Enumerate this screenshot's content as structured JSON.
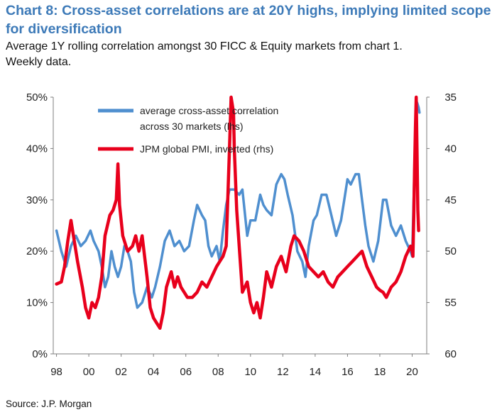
{
  "title_line1": "Chart 8: Cross-asset correlations are at 20Y highs, implying limited scope",
  "title_line2": "for diversification",
  "subtitle_line1": "Average 1Y rolling correlation amongst 30 FICC & Equity markets from chart 1.",
  "subtitle_line2": "Weekly data.",
  "source": "Source: J.P. Morgan",
  "chart_data": {
    "type": "line",
    "x_range": [
      1997.8,
      2020.9
    ],
    "x_ticks": [
      {
        "value": 1998,
        "label": "98"
      },
      {
        "value": 2000,
        "label": "00"
      },
      {
        "value": 2002,
        "label": "02"
      },
      {
        "value": 2004,
        "label": "04"
      },
      {
        "value": 2006,
        "label": "06"
      },
      {
        "value": 2008,
        "label": "08"
      },
      {
        "value": 2010,
        "label": "10"
      },
      {
        "value": 2012,
        "label": "12"
      },
      {
        "value": 2014,
        "label": "14"
      },
      {
        "value": 2016,
        "label": "16"
      },
      {
        "value": 2018,
        "label": "18"
      },
      {
        "value": 2020,
        "label": "20"
      }
    ],
    "y_left": {
      "min": 0,
      "max": 50,
      "ticks": [
        {
          "value": 50,
          "label": "50%"
        },
        {
          "value": 40,
          "label": "40%"
        },
        {
          "value": 30,
          "label": "30%"
        },
        {
          "value": 20,
          "label": "20%"
        },
        {
          "value": 10,
          "label": "10%"
        },
        {
          "value": 0,
          "label": "0%"
        }
      ]
    },
    "y_right": {
      "top": 35,
      "bottom": 60,
      "inverted": true,
      "ticks": [
        {
          "value": 35,
          "label": "35"
        },
        {
          "value": 40,
          "label": "40"
        },
        {
          "value": 45,
          "label": "45"
        },
        {
          "value": 50,
          "label": "50"
        },
        {
          "value": 55,
          "label": "55"
        },
        {
          "value": 60,
          "label": "60"
        }
      ]
    },
    "series": [
      {
        "name": "average cross-asset correlation across 30 markets (lhs)",
        "legend_line1": "average cross-asset correlation",
        "legend_line2": "across 30 markets (lhs)",
        "axis": "left",
        "color": "#4f8fcf",
        "points": [
          [
            1998.0,
            24
          ],
          [
            1998.3,
            20
          ],
          [
            1998.6,
            17
          ],
          [
            1998.9,
            21
          ],
          [
            1999.2,
            23
          ],
          [
            1999.5,
            21
          ],
          [
            1999.8,
            22
          ],
          [
            2000.1,
            24
          ],
          [
            2000.3,
            22
          ],
          [
            2000.6,
            20
          ],
          [
            2000.8,
            17
          ],
          [
            2001.0,
            13
          ],
          [
            2001.2,
            15
          ],
          [
            2001.4,
            20
          ],
          [
            2001.6,
            17
          ],
          [
            2001.8,
            15
          ],
          [
            2002.0,
            17
          ],
          [
            2002.2,
            21
          ],
          [
            2002.4,
            20
          ],
          [
            2002.6,
            18
          ],
          [
            2002.8,
            12
          ],
          [
            2003.0,
            9
          ],
          [
            2003.3,
            10
          ],
          [
            2003.6,
            13
          ],
          [
            2003.9,
            11
          ],
          [
            2004.1,
            13
          ],
          [
            2004.4,
            17
          ],
          [
            2004.7,
            22
          ],
          [
            2005.0,
            24
          ],
          [
            2005.3,
            21
          ],
          [
            2005.6,
            22
          ],
          [
            2005.9,
            20
          ],
          [
            2006.2,
            21
          ],
          [
            2006.5,
            26
          ],
          [
            2006.7,
            29
          ],
          [
            2007.0,
            27
          ],
          [
            2007.2,
            26
          ],
          [
            2007.4,
            21
          ],
          [
            2007.6,
            19
          ],
          [
            2007.9,
            21
          ],
          [
            2008.1,
            18
          ],
          [
            2008.3,
            24
          ],
          [
            2008.5,
            29
          ],
          [
            2008.7,
            32
          ],
          [
            2009.0,
            32
          ],
          [
            2009.3,
            31
          ],
          [
            2009.5,
            32
          ],
          [
            2009.8,
            23
          ],
          [
            2010.0,
            26
          ],
          [
            2010.3,
            26
          ],
          [
            2010.6,
            31
          ],
          [
            2010.8,
            29
          ],
          [
            2011.0,
            28
          ],
          [
            2011.3,
            27
          ],
          [
            2011.6,
            33
          ],
          [
            2011.9,
            35
          ],
          [
            2012.1,
            34
          ],
          [
            2012.3,
            31
          ],
          [
            2012.6,
            27
          ],
          [
            2012.9,
            20
          ],
          [
            2013.2,
            18
          ],
          [
            2013.4,
            15
          ],
          [
            2013.6,
            21
          ],
          [
            2013.9,
            26
          ],
          [
            2014.1,
            27
          ],
          [
            2014.4,
            31
          ],
          [
            2014.7,
            31
          ],
          [
            2015.0,
            27
          ],
          [
            2015.3,
            23
          ],
          [
            2015.6,
            26
          ],
          [
            2015.8,
            30
          ],
          [
            2016.0,
            34
          ],
          [
            2016.2,
            33
          ],
          [
            2016.5,
            35
          ],
          [
            2016.7,
            35
          ],
          [
            2016.9,
            30
          ],
          [
            2017.1,
            25
          ],
          [
            2017.3,
            21
          ],
          [
            2017.6,
            18
          ],
          [
            2017.9,
            22
          ],
          [
            2018.2,
            30
          ],
          [
            2018.4,
            30
          ],
          [
            2018.7,
            25
          ],
          [
            2019.0,
            23
          ],
          [
            2019.3,
            25
          ],
          [
            2019.6,
            22
          ],
          [
            2019.9,
            20
          ],
          [
            2020.0,
            19
          ],
          [
            2020.1,
            31
          ],
          [
            2020.2,
            44
          ],
          [
            2020.3,
            49
          ],
          [
            2020.4,
            48
          ],
          [
            2020.45,
            47
          ]
        ]
      },
      {
        "name": "JPM global PMI, inverted (rhs)",
        "legend_line1": "JPM global PMI, inverted (rhs)",
        "axis": "right",
        "color": "#e8001c",
        "points": [
          [
            1998.0,
            53.2
          ],
          [
            1998.3,
            53.0
          ],
          [
            1998.5,
            51.5
          ],
          [
            1998.7,
            49.0
          ],
          [
            1998.9,
            47.0
          ],
          [
            1999.1,
            49.0
          ],
          [
            1999.3,
            51.0
          ],
          [
            1999.6,
            53.5
          ],
          [
            1999.8,
            55.5
          ],
          [
            2000.0,
            56.5
          ],
          [
            2000.2,
            55.0
          ],
          [
            2000.4,
            55.5
          ],
          [
            2000.6,
            54.5
          ],
          [
            2000.8,
            52.5
          ],
          [
            2001.0,
            48.5
          ],
          [
            2001.3,
            46.5
          ],
          [
            2001.5,
            46.0
          ],
          [
            2001.7,
            45.0
          ],
          [
            2001.8,
            41.5
          ],
          [
            2001.9,
            45.5
          ],
          [
            2002.1,
            48.5
          ],
          [
            2002.4,
            50.0
          ],
          [
            2002.7,
            49.5
          ],
          [
            2002.9,
            48.5
          ],
          [
            2003.1,
            50.0
          ],
          [
            2003.3,
            48.5
          ],
          [
            2003.6,
            52.5
          ],
          [
            2003.8,
            55.5
          ],
          [
            2004.0,
            56.5
          ],
          [
            2004.2,
            57.0
          ],
          [
            2004.4,
            57.5
          ],
          [
            2004.6,
            56.0
          ],
          [
            2004.8,
            53.5
          ],
          [
            2005.1,
            52.0
          ],
          [
            2005.3,
            53.5
          ],
          [
            2005.5,
            52.5
          ],
          [
            2005.7,
            53.5
          ],
          [
            2005.9,
            54.0
          ],
          [
            2006.1,
            54.5
          ],
          [
            2006.4,
            54.5
          ],
          [
            2006.7,
            54.0
          ],
          [
            2007.0,
            53.0
          ],
          [
            2007.3,
            53.5
          ],
          [
            2007.6,
            52.5
          ],
          [
            2007.9,
            51.5
          ],
          [
            2008.1,
            51.0
          ],
          [
            2008.3,
            50.5
          ],
          [
            2008.5,
            49.5
          ],
          [
            2008.7,
            40.0
          ],
          [
            2008.8,
            35.0
          ],
          [
            2008.95,
            36.5
          ],
          [
            2009.0,
            40.0
          ],
          [
            2009.15,
            46.0
          ],
          [
            2009.3,
            49.5
          ],
          [
            2009.5,
            54.0
          ],
          [
            2009.8,
            53.0
          ],
          [
            2010.0,
            55.0
          ],
          [
            2010.2,
            56.0
          ],
          [
            2010.4,
            55.0
          ],
          [
            2010.6,
            56.5
          ],
          [
            2010.8,
            54.5
          ],
          [
            2011.0,
            52.0
          ],
          [
            2011.3,
            53.5
          ],
          [
            2011.6,
            51.5
          ],
          [
            2011.9,
            50.5
          ],
          [
            2012.2,
            52.0
          ],
          [
            2012.5,
            49.5
          ],
          [
            2012.7,
            48.5
          ],
          [
            2013.0,
            49.0
          ],
          [
            2013.3,
            50.0
          ],
          [
            2013.6,
            51.5
          ],
          [
            2013.9,
            52.0
          ],
          [
            2014.2,
            52.5
          ],
          [
            2014.5,
            52.0
          ],
          [
            2014.8,
            53.0
          ],
          [
            2015.1,
            53.5
          ],
          [
            2015.4,
            52.5
          ],
          [
            2015.7,
            52.0
          ],
          [
            2016.0,
            51.5
          ],
          [
            2016.3,
            51.0
          ],
          [
            2016.6,
            50.5
          ],
          [
            2016.9,
            50.0
          ],
          [
            2017.2,
            51.5
          ],
          [
            2017.5,
            52.5
          ],
          [
            2017.8,
            53.5
          ],
          [
            2018.0,
            53.8
          ],
          [
            2018.2,
            54.0
          ],
          [
            2018.4,
            54.5
          ],
          [
            2018.7,
            53.5
          ],
          [
            2019.0,
            53.0
          ],
          [
            2019.3,
            52.0
          ],
          [
            2019.6,
            50.5
          ],
          [
            2019.9,
            49.5
          ],
          [
            2020.0,
            50.0
          ],
          [
            2020.05,
            50.5
          ],
          [
            2020.1,
            46.5
          ],
          [
            2020.15,
            42.0
          ],
          [
            2020.2,
            38.0
          ],
          [
            2020.25,
            35.0
          ],
          [
            2020.3,
            40.0
          ],
          [
            2020.35,
            46.0
          ],
          [
            2020.4,
            48.0
          ]
        ]
      }
    ]
  }
}
